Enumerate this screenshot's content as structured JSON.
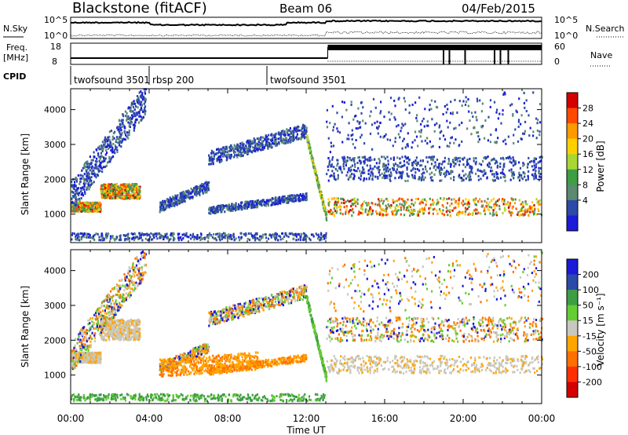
{
  "header": {
    "station": "Blackstone (fitACF)",
    "beam": "Beam 06",
    "date": "04/Feb/2015"
  },
  "top_panels": {
    "nsky_label": "N.Sky",
    "nsearch_label": "N.Search",
    "nsky_ticks": [
      "10^5",
      "10^0"
    ],
    "nsearch_ticks": [
      "10^5",
      "10^0"
    ],
    "freq_label": "Freq.",
    "freq_unit": "[MHz]",
    "freq_ticks": [
      "18",
      "8"
    ],
    "nave_label": "Nave",
    "nave_ticks": [
      "60",
      "0"
    ],
    "cpid_label": "CPID",
    "cpid_segments": [
      {
        "label": "twofsound 3501",
        "start_h": 0,
        "end_h": 4.0
      },
      {
        "label": "rbsp 200",
        "start_h": 4.0,
        "end_h": 10.0
      },
      {
        "label": "twofsound 3501",
        "start_h": 10.0,
        "end_h": 24.0
      }
    ]
  },
  "chart_data": [
    {
      "type": "heatmap",
      "name": "power",
      "ylabel": "Slant Range [km]",
      "xlabel": "Time UT",
      "xlim_hours": [
        0,
        24
      ],
      "ylim_km": [
        180,
        4600
      ],
      "ytick_values": [
        1000,
        2000,
        3000,
        4000
      ],
      "ytick_labels": [
        "1000",
        "2000",
        "3000",
        "4000"
      ],
      "colorbar": {
        "label": "Power [dB]",
        "tick_labels": [
          "28",
          "24",
          "20",
          "16",
          "12",
          "8",
          "4"
        ],
        "colors": [
          "#d40000",
          "#ff4a00",
          "#ff9a00",
          "#ffd000",
          "#a9d633",
          "#3d9e44",
          "#5b8a70",
          "#2c4aa8",
          "#1b1bd8"
        ]
      },
      "echo_bands": [
        {
          "start_h": 0.0,
          "end_h": 1.5,
          "center_km": 1200,
          "width_km": 260
        },
        {
          "start_h": 1.5,
          "end_h": 3.5,
          "center_km": 1650,
          "width_km": 420
        },
        {
          "start_h": 13.0,
          "end_h": 24.0,
          "center_km": 1200,
          "width_km": 500
        }
      ]
    },
    {
      "type": "heatmap",
      "name": "velocity",
      "ylabel": "Slant Range [km]",
      "xlabel": "Time UT",
      "xlim_hours": [
        0,
        24
      ],
      "ylim_km": [
        180,
        4600
      ],
      "ytick_values": [
        1000,
        2000,
        3000,
        4000
      ],
      "ytick_labels": [
        "1000",
        "2000",
        "3000",
        "4000"
      ],
      "colorbar": {
        "label": "Velocity [m s⁻¹]",
        "tick_labels": [
          "200",
          "100",
          "50",
          "15",
          "-15",
          "-50",
          "-100",
          "-200"
        ],
        "colors": [
          "#1b1bd8",
          "#2c4aa8",
          "#3d9e44",
          "#66cc33",
          "#c8c8c0",
          "#ffa500",
          "#ff7000",
          "#ff3000",
          "#d40000"
        ]
      },
      "echo_bands": [
        {
          "start_h": 0.0,
          "end_h": 1.5,
          "center_km": 1500,
          "width_km": 300
        },
        {
          "start_h": 1.5,
          "end_h": 3.5,
          "center_km": 2300,
          "width_km": 600
        },
        {
          "start_h": 13.0,
          "end_h": 24.0,
          "center_km": 1300,
          "width_km": 500
        }
      ]
    }
  ],
  "x_axis": {
    "tick_labels": [
      "00:00",
      "04:00",
      "08:00",
      "12:00",
      "16:00",
      "20:00",
      "00:00"
    ],
    "label": "Time UT"
  }
}
